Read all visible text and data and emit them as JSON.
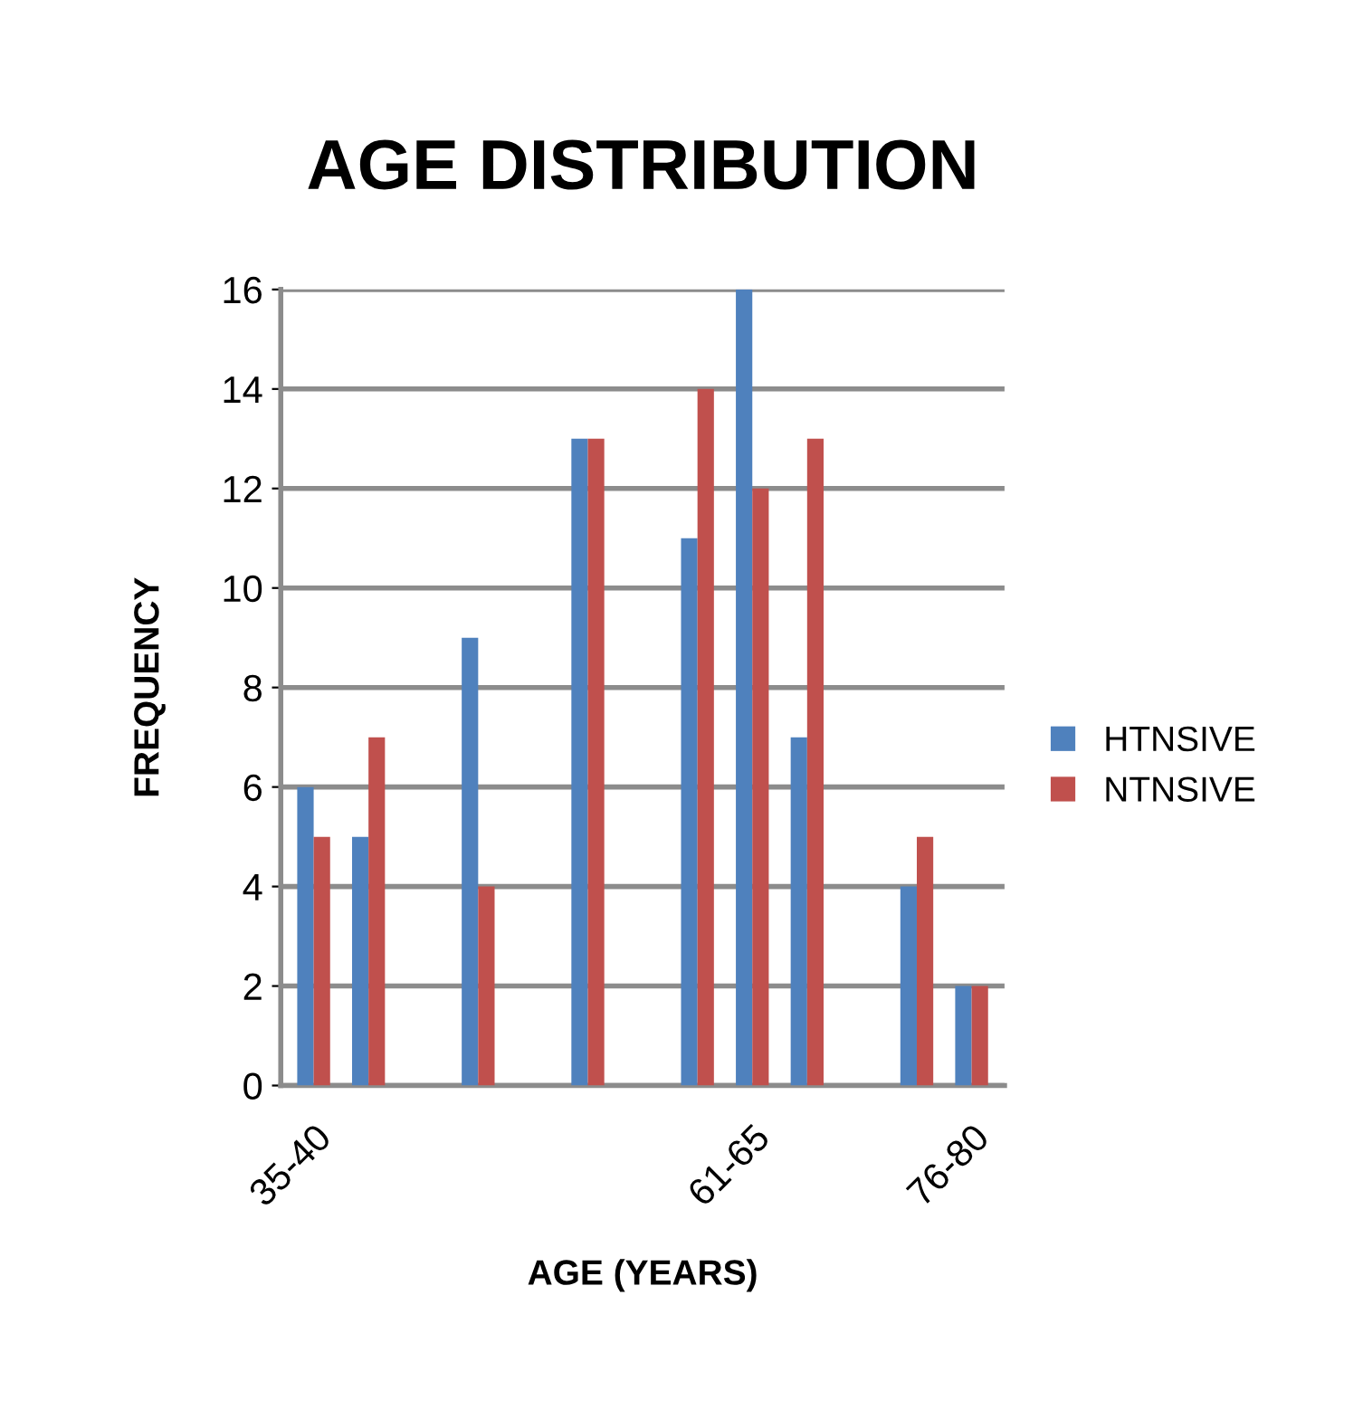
{
  "chart_data": {
    "type": "bar",
    "title": "AGE DISTRIBUTION",
    "xlabel": "AGE (YEARS)",
    "ylabel": "FREQUENCY",
    "categories": [
      "35-40",
      null,
      null,
      null,
      null,
      null,
      null,
      null,
      "61-65",
      null,
      null,
      null,
      "76-80"
    ],
    "series": [
      {
        "name": "HTNSIVE",
        "color": "#4f81bd",
        "values": [
          6,
          5,
          null,
          9,
          null,
          13,
          null,
          11,
          16,
          7,
          null,
          4,
          2
        ]
      },
      {
        "name": "NTNSIVE",
        "color": "#c0504d",
        "values": [
          5,
          7,
          0,
          4,
          null,
          13,
          0,
          14,
          12,
          13,
          null,
          5,
          2
        ]
      }
    ],
    "ylim": [
      0,
      16
    ],
    "yticks": [
      0,
      2,
      4,
      6,
      8,
      10,
      12,
      14,
      16
    ],
    "grid": "y",
    "legend": "right"
  }
}
